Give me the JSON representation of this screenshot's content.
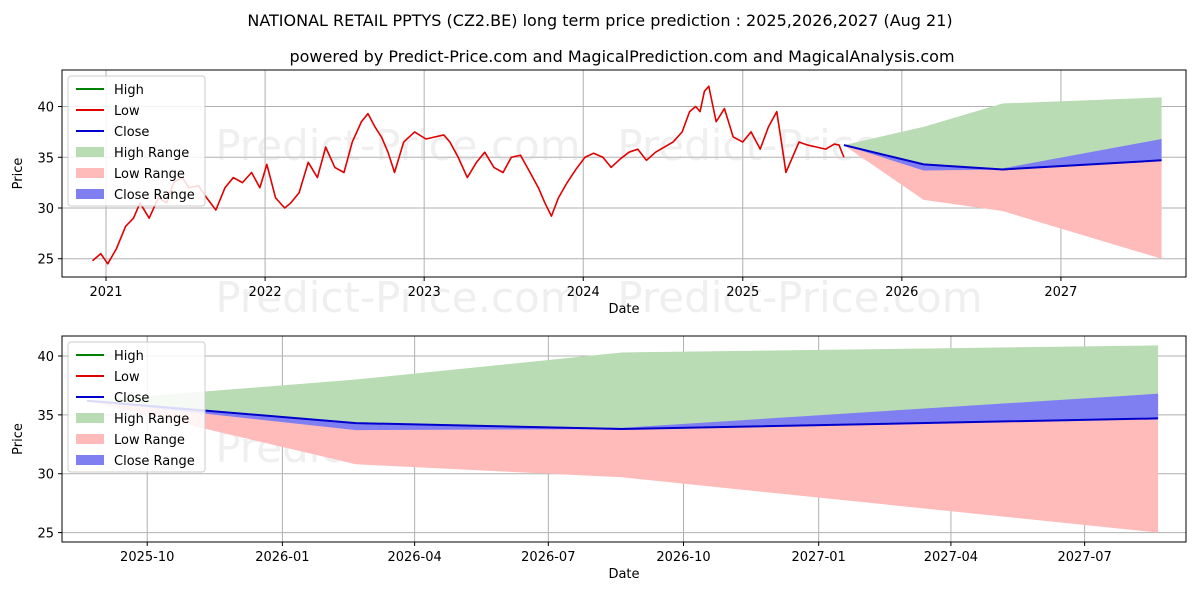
{
  "title": "NATIONAL RETAIL PPTYS (CZ2.BE) long term price prediction : 2025,2026,2027 (Aug 21)",
  "subtitle": "powered by Predict-Price.com and MagicalPrediction.com and MagicalAnalysis.com",
  "watermark": "Predict-Price.com",
  "colors": {
    "high": "#008000",
    "low": "#e00000",
    "close": "#0000cc",
    "high_range": "#b9dcb4",
    "low_range": "#ffbaba",
    "close_range": "#7f7ff2",
    "grid": "#b0b0b0"
  },
  "chart_data": [
    {
      "type": "line",
      "xlabel": "Date",
      "ylabel": "Price",
      "xlim": [
        "2020-09-22",
        "2027-10-15"
      ],
      "ylim": [
        23.2,
        43.6
      ],
      "xticks": [
        {
          "date": "2021-01-01",
          "label": "2021"
        },
        {
          "date": "2022-01-01",
          "label": "2022"
        },
        {
          "date": "2023-01-01",
          "label": "2023"
        },
        {
          "date": "2024-01-01",
          "label": "2024"
        },
        {
          "date": "2025-01-01",
          "label": "2025"
        },
        {
          "date": "2026-01-01",
          "label": "2026"
        },
        {
          "date": "2027-01-01",
          "label": "2027"
        }
      ],
      "yticks": [
        25,
        30,
        35,
        40
      ],
      "grid": true,
      "legend_position": "top-left",
      "legend": [
        "High",
        "Low",
        "Close",
        "High Range",
        "Low Range",
        "Close Range"
      ],
      "history": {
        "name": "Low",
        "x": [
          "2020-12-01",
          "2020-12-20",
          "2021-01-05",
          "2021-01-25",
          "2021-02-15",
          "2021-03-05",
          "2021-03-20",
          "2021-04-10",
          "2021-05-01",
          "2021-05-20",
          "2021-06-05",
          "2021-06-25",
          "2021-07-10",
          "2021-08-01",
          "2021-08-20",
          "2021-09-10",
          "2021-10-01",
          "2021-10-20",
          "2021-11-10",
          "2021-12-01",
          "2021-12-20",
          "2022-01-05",
          "2022-01-25",
          "2022-02-15",
          "2022-03-01",
          "2022-03-20",
          "2022-04-10",
          "2022-05-01",
          "2022-05-20",
          "2022-06-10",
          "2022-07-01",
          "2022-07-20",
          "2022-08-10",
          "2022-08-25",
          "2022-09-10",
          "2022-09-25",
          "2022-10-10",
          "2022-10-25",
          "2022-11-15",
          "2022-12-10",
          "2023-01-05",
          "2023-01-25",
          "2023-02-15",
          "2023-03-01",
          "2023-03-20",
          "2023-04-10",
          "2023-05-01",
          "2023-05-20",
          "2023-06-10",
          "2023-07-01",
          "2023-07-20",
          "2023-08-10",
          "2023-09-01",
          "2023-09-20",
          "2023-10-05",
          "2023-10-20",
          "2023-11-05",
          "2023-11-25",
          "2023-12-15",
          "2024-01-05",
          "2024-01-25",
          "2024-02-15",
          "2024-03-05",
          "2024-03-25",
          "2024-04-15",
          "2024-05-05",
          "2024-05-25",
          "2024-06-15",
          "2024-07-05",
          "2024-07-25",
          "2024-08-15",
          "2024-09-01",
          "2024-09-15",
          "2024-09-25",
          "2024-10-05",
          "2024-10-15",
          "2024-11-01",
          "2024-11-20",
          "2024-12-10",
          "2025-01-01",
          "2025-01-20",
          "2025-02-10",
          "2025-03-01",
          "2025-03-20",
          "2025-04-05",
          "2025-04-10",
          "2025-04-25",
          "2025-05-10",
          "2025-05-30",
          "2025-06-20",
          "2025-07-10",
          "2025-07-30",
          "2025-08-10",
          "2025-08-21"
        ],
        "y": [
          24.8,
          25.5,
          24.5,
          26.0,
          28.2,
          29.0,
          30.5,
          29.0,
          31.0,
          30.5,
          32.5,
          33.0,
          32.0,
          32.2,
          31.0,
          29.8,
          32.0,
          33.0,
          32.5,
          33.5,
          32.0,
          34.3,
          31.0,
          30.0,
          30.5,
          31.5,
          34.5,
          33.0,
          36.0,
          34.0,
          33.5,
          36.5,
          38.5,
          39.3,
          38.0,
          37.0,
          35.5,
          33.5,
          36.5,
          37.5,
          36.8,
          37.0,
          37.2,
          36.5,
          35.0,
          33.0,
          34.5,
          35.5,
          34.0,
          33.5,
          35.0,
          35.2,
          33.5,
          32.0,
          30.5,
          29.2,
          31.0,
          32.5,
          33.8,
          35.0,
          35.4,
          35.0,
          34.0,
          34.8,
          35.5,
          35.8,
          34.7,
          35.5,
          36.0,
          36.5,
          37.5,
          39.5,
          40.0,
          39.5,
          41.5,
          42.0,
          38.5,
          39.8,
          37.0,
          36.5,
          37.5,
          35.8,
          38.0,
          39.5,
          35.0,
          33.5,
          35.0,
          36.5,
          36.2,
          36.0,
          35.8,
          36.3,
          36.2,
          35.0
        ]
      },
      "forecast": {
        "x": [
          "2025-08-21",
          "2026-02-20",
          "2026-08-20",
          "2027-08-20"
        ],
        "close": [
          36.2,
          34.3,
          33.8,
          34.7
        ],
        "high_range": {
          "lower": [
            36.2,
            34.3,
            33.8,
            34.7
          ],
          "upper": [
            36.2,
            38.0,
            40.3,
            40.9
          ]
        },
        "low_range": {
          "lower": [
            36.2,
            30.8,
            29.7,
            25.0
          ],
          "upper": [
            36.2,
            34.3,
            33.8,
            34.7
          ]
        },
        "close_range": {
          "lower": [
            36.2,
            33.7,
            33.8,
            34.7
          ],
          "upper": [
            36.2,
            34.3,
            33.9,
            36.8
          ]
        }
      }
    },
    {
      "type": "line",
      "xlabel": "Date",
      "ylabel": "Price",
      "xlim": [
        "2025-08-04",
        "2027-09-08"
      ],
      "ylim": [
        24.2,
        41.7
      ],
      "xticks": [
        {
          "date": "2025-10-01",
          "label": "2025-10"
        },
        {
          "date": "2026-01-01",
          "label": "2026-01"
        },
        {
          "date": "2026-04-01",
          "label": "2026-04"
        },
        {
          "date": "2026-07-01",
          "label": "2026-07"
        },
        {
          "date": "2026-10-01",
          "label": "2026-10"
        },
        {
          "date": "2027-01-01",
          "label": "2027-01"
        },
        {
          "date": "2027-04-01",
          "label": "2027-04"
        },
        {
          "date": "2027-07-01",
          "label": "2027-07"
        }
      ],
      "yticks": [
        25,
        30,
        35,
        40
      ],
      "grid": true,
      "legend_position": "top-left",
      "legend": [
        "High",
        "Low",
        "Close",
        "High Range",
        "Low Range",
        "Close Range"
      ],
      "forecast": {
        "x": [
          "2025-08-21",
          "2026-02-20",
          "2026-08-20",
          "2027-08-20"
        ],
        "close": [
          36.2,
          34.3,
          33.8,
          34.7
        ],
        "high_range": {
          "lower": [
            36.2,
            34.3,
            33.8,
            34.7
          ],
          "upper": [
            36.2,
            38.0,
            40.3,
            40.9
          ]
        },
        "low_range": {
          "lower": [
            36.2,
            30.8,
            29.7,
            25.0
          ],
          "upper": [
            36.2,
            34.3,
            33.8,
            34.7
          ]
        },
        "close_range": {
          "lower": [
            36.2,
            33.7,
            33.8,
            34.7
          ],
          "upper": [
            36.2,
            34.3,
            33.9,
            36.8
          ]
        }
      }
    }
  ]
}
